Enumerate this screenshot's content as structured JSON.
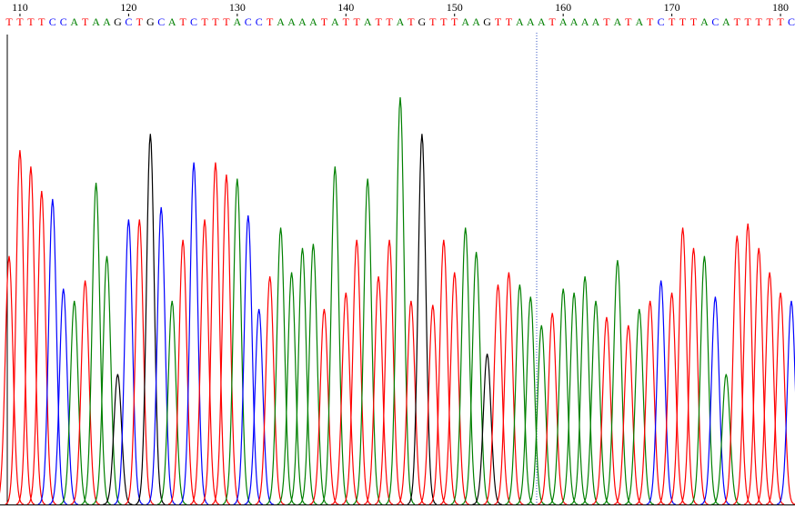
{
  "chart_data": {
    "type": "chromatogram",
    "bases": [
      "T",
      "T",
      "T",
      "T",
      "C",
      "C",
      "A",
      "T",
      "A",
      "A",
      "G",
      "C",
      "T",
      "G",
      "C",
      "A",
      "T",
      "C",
      "T",
      "T",
      "T",
      "A",
      "C",
      "C",
      "T",
      "A",
      "A",
      "A",
      "A",
      "T",
      "A",
      "T",
      "T",
      "A",
      "T",
      "T",
      "A",
      "T",
      "G",
      "T",
      "T",
      "T",
      "A",
      "A",
      "G",
      "T",
      "T",
      "A",
      "A",
      "A",
      "T",
      "A",
      "A",
      "A",
      "A",
      "T",
      "A",
      "T",
      "A",
      "T",
      "C",
      "T",
      "T",
      "T",
      "A",
      "C",
      "A",
      "T",
      "T",
      "T",
      "T",
      "T",
      "C"
    ],
    "values": [
      61,
      87,
      83,
      77,
      75,
      53,
      50,
      55,
      79,
      61,
      32,
      70,
      70,
      91,
      73,
      50,
      65,
      84,
      70,
      84,
      81,
      80,
      71,
      48,
      56,
      68,
      57,
      63,
      64,
      48,
      83,
      52,
      65,
      80,
      56,
      65,
      100,
      50,
      91,
      49,
      65,
      57,
      68,
      62,
      37,
      54,
      57,
      54,
      51,
      44,
      47,
      53,
      52,
      56,
      50,
      46,
      60,
      44,
      48,
      50,
      55,
      52,
      68,
      63,
      61,
      51,
      32,
      66,
      69,
      63,
      57,
      52,
      50
    ],
    "xlim": [
      109,
      181
    ],
    "xticks": [
      110,
      120,
      130,
      140,
      150,
      160,
      170,
      180
    ],
    "ylim": [
      0,
      100
    ],
    "colors": {
      "A": "#008000",
      "C": "#0000ff",
      "G": "#000000",
      "T": "#ff0000"
    }
  }
}
